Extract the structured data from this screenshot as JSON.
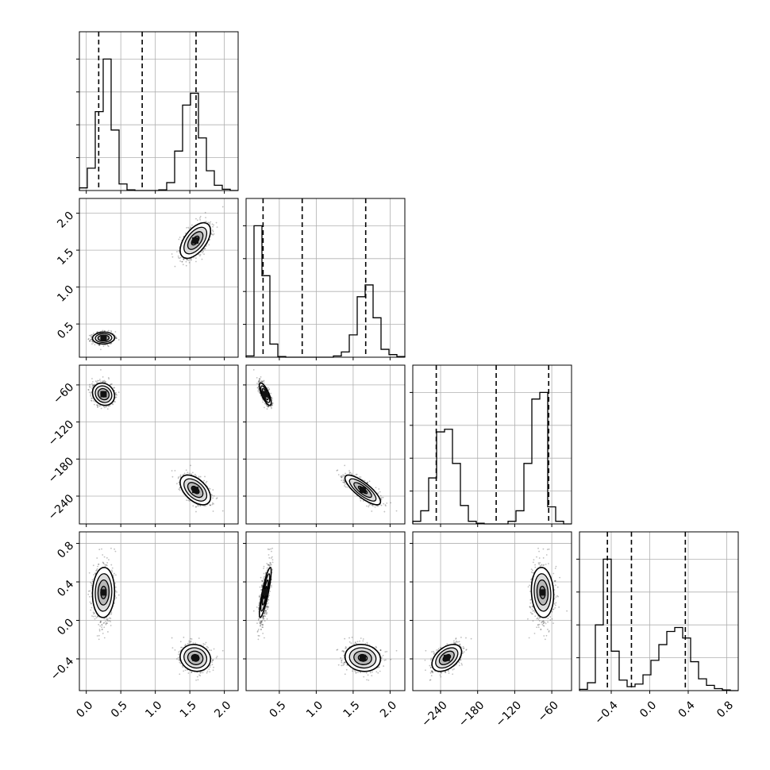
{
  "chart_data": {
    "type": "corner",
    "grid": true,
    "parameters": [
      {
        "range": [
          -0.1,
          2.2
        ],
        "ticks": [
          0.0,
          0.5,
          1.0,
          1.5,
          2.0
        ],
        "tick_labels": [
          "0.0",
          "0.5",
          "1.0",
          "1.5",
          "2.0"
        ],
        "quantiles": [
          0.18,
          0.81,
          1.59
        ],
        "hist_edges": [
          -0.1,
          0.015,
          0.13,
          0.245,
          0.36,
          0.475,
          0.59,
          0.705,
          0.82,
          0.935,
          1.05,
          1.165,
          1.28,
          1.395,
          1.51,
          1.625,
          1.74,
          1.855,
          1.97,
          2.085,
          2.2
        ],
        "hist_counts": [
          0.02,
          0.17,
          0.6,
          1.0,
          0.46,
          0.05,
          0.005,
          0,
          0,
          0,
          0.005,
          0.06,
          0.3,
          0.65,
          0.74,
          0.4,
          0.15,
          0.04,
          0.01,
          0
        ]
      },
      {
        "range": [
          0.05,
          2.2
        ],
        "ticks": [
          0.5,
          1.0,
          1.5,
          2.0
        ],
        "tick_labels": [
          "0.5",
          "1.0",
          "1.5",
          "2.0"
        ],
        "quantiles": [
          0.28,
          0.81,
          1.67
        ],
        "hist_edges": [
          0.05,
          0.1575,
          0.265,
          0.3725,
          0.48,
          0.5875,
          0.695,
          0.8025,
          0.91,
          1.0175,
          1.125,
          1.2325,
          1.34,
          1.4475,
          1.555,
          1.6625,
          1.77,
          1.8775,
          1.985,
          2.0925,
          2.2
        ],
        "hist_counts": [
          0.01,
          1.0,
          0.62,
          0.1,
          0.005,
          0,
          0,
          0,
          0,
          0,
          0,
          0.01,
          0.04,
          0.17,
          0.46,
          0.55,
          0.3,
          0.06,
          0.02,
          0.005
        ]
      },
      {
        "range": [
          -285,
          -28
        ],
        "ticks": [
          -240,
          -180,
          -120,
          -60
        ],
        "tick_labels": [
          "−240",
          "−180",
          "−120",
          "−60"
        ],
        "quantiles": [
          -247,
          -150,
          -65
        ],
        "hist_edges": [
          -285,
          -272.15,
          -259.3,
          -246.45,
          -233.6,
          -220.75,
          -207.9,
          -195.05,
          -182.2,
          -169.35,
          -156.5,
          -143.65,
          -130.8,
          -117.95,
          -105.1,
          -92.25,
          -79.4,
          -66.55,
          -53.7,
          -40.85,
          -28
        ],
        "hist_counts": [
          0.02,
          0.1,
          0.35,
          0.7,
          0.72,
          0.46,
          0.14,
          0.02,
          0.005,
          0,
          0,
          0,
          0.02,
          0.1,
          0.46,
          0.95,
          1.0,
          0.13,
          0.02,
          0
        ]
      },
      {
        "range": [
          -0.73,
          0.92
        ],
        "ticks": [
          -0.4,
          0.0,
          0.4,
          0.8
        ],
        "tick_labels": [
          "−0.4",
          "0.0",
          "0.4",
          "0.8"
        ],
        "quantiles": [
          -0.44,
          -0.19,
          0.37
        ],
        "hist_edges": [
          -0.73,
          -0.6475,
          -0.565,
          -0.4825,
          -0.4,
          -0.3175,
          -0.235,
          -0.1525,
          -0.07,
          0.0125,
          0.095,
          0.1775,
          0.26,
          0.3425,
          0.425,
          0.5075,
          0.59,
          0.6725,
          0.755,
          0.8375,
          0.92
        ],
        "hist_counts": [
          0.01,
          0.06,
          0.5,
          1.0,
          0.3,
          0.08,
          0.03,
          0.05,
          0.12,
          0.23,
          0.35,
          0.45,
          0.48,
          0.4,
          0.22,
          0.09,
          0.04,
          0.015,
          0.005,
          0
        ]
      }
    ],
    "modes": [
      {
        "center": [
          0.25,
          0.31,
          -75,
          0.29
        ],
        "sd": [
          0.08,
          0.04,
          9,
          0.13
        ],
        "corr": [
          [
            1,
            0.05,
            -0.15,
            0.05
          ],
          [
            0.05,
            1,
            -0.75,
            0.85
          ],
          [
            -0.15,
            -0.75,
            1,
            -0.1
          ],
          [
            0.05,
            0.85,
            -0.1,
            1
          ]
        ],
        "weight": 1.0
      },
      {
        "center": [
          1.58,
          1.63,
          -230,
          -0.39
        ],
        "sd": [
          0.11,
          0.12,
          12,
          0.07
        ],
        "corr": [
          [
            1,
            0.55,
            -0.5,
            -0.1
          ],
          [
            0.55,
            1,
            -0.8,
            -0.1
          ],
          [
            -0.5,
            -0.8,
            1,
            0.45
          ],
          [
            -0.1,
            -0.1,
            0.45,
            1
          ]
        ],
        "weight": 1.0
      }
    ]
  }
}
